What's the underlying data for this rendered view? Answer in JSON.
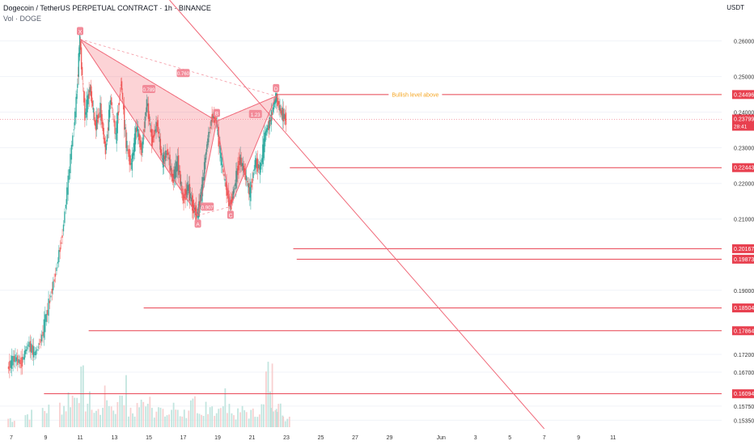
{
  "header": {
    "title": "Dogecoin / TetherUS PERPETUAL CONTRACT · 1h · BINANCE",
    "volume_label": "Vol · DOGE"
  },
  "axis": {
    "unit": "USDT"
  },
  "chart_data": {
    "type": "candlestick",
    "title": "Dogecoin / TetherUS PERPETUAL CONTRACT · 1h · BINANCE",
    "y_unit": "USDT",
    "ylim": [
      0.1511,
      0.2715
    ],
    "y_ticks": [
      0.26,
      0.25,
      0.24,
      0.23,
      0.22,
      0.21,
      0.19,
      0.172,
      0.167,
      0.1575,
      0.1535
    ],
    "x_ticks": [
      {
        "label": "7",
        "day": 7
      },
      {
        "label": "9",
        "day": 9
      },
      {
        "label": "11",
        "day": 11
      },
      {
        "label": "13",
        "day": 13
      },
      {
        "label": "15",
        "day": 15
      },
      {
        "label": "17",
        "day": 17
      },
      {
        "label": "19",
        "day": 19
      },
      {
        "label": "21",
        "day": 21
      },
      {
        "label": "23",
        "day": 23
      },
      {
        "label": "25",
        "day": 25
      },
      {
        "label": "27",
        "day": 27
      },
      {
        "label": "29",
        "day": 29
      },
      {
        "label": "Jun",
        "day": 32
      },
      {
        "label": "3",
        "day": 34
      },
      {
        "label": "5",
        "day": 36
      },
      {
        "label": "7",
        "day": 38
      },
      {
        "label": "9",
        "day": 40
      },
      {
        "label": "11",
        "day": 42
      }
    ],
    "price_path": [
      [
        6.8,
        0.168
      ],
      [
        7.2,
        0.171
      ],
      [
        7.6,
        0.1695
      ],
      [
        8.0,
        0.175
      ],
      [
        8.4,
        0.172
      ],
      [
        8.8,
        0.177
      ],
      [
        9.2,
        0.186
      ],
      [
        9.6,
        0.195
      ],
      [
        10.0,
        0.206
      ],
      [
        10.4,
        0.224
      ],
      [
        10.8,
        0.243
      ],
      [
        11.0,
        0.2605
      ],
      [
        11.3,
        0.239
      ],
      [
        11.6,
        0.247
      ],
      [
        11.9,
        0.236
      ],
      [
        12.2,
        0.241
      ],
      [
        12.5,
        0.229
      ],
      [
        12.8,
        0.244
      ],
      [
        13.1,
        0.233
      ],
      [
        13.4,
        0.249
      ],
      [
        13.7,
        0.231
      ],
      [
        14.0,
        0.225
      ],
      [
        14.3,
        0.236
      ],
      [
        14.6,
        0.229
      ],
      [
        14.9,
        0.243
      ],
      [
        15.2,
        0.232
      ],
      [
        15.5,
        0.237
      ],
      [
        15.8,
        0.226
      ],
      [
        16.1,
        0.229
      ],
      [
        16.4,
        0.221
      ],
      [
        16.7,
        0.226
      ],
      [
        17.0,
        0.2155
      ],
      [
        17.3,
        0.219
      ],
      [
        17.6,
        0.213
      ],
      [
        17.85,
        0.211
      ],
      [
        18.1,
        0.218
      ],
      [
        18.4,
        0.231
      ],
      [
        18.7,
        0.239
      ],
      [
        18.95,
        0.2375
      ],
      [
        19.2,
        0.227
      ],
      [
        19.5,
        0.219
      ],
      [
        19.75,
        0.2135
      ],
      [
        20.0,
        0.219
      ],
      [
        20.3,
        0.227
      ],
      [
        20.6,
        0.223
      ],
      [
        20.9,
        0.217
      ],
      [
        21.2,
        0.226
      ],
      [
        21.5,
        0.224
      ],
      [
        21.8,
        0.234
      ],
      [
        22.1,
        0.238
      ],
      [
        22.4,
        0.2445
      ],
      [
        22.7,
        0.24
      ],
      [
        23.0,
        0.238
      ]
    ],
    "volume_range": [
      0,
      100
    ],
    "volume": [
      [
        7,
        12
      ],
      [
        8,
        18
      ],
      [
        9,
        25
      ],
      [
        10,
        30
      ],
      [
        10.5,
        42
      ],
      [
        11,
        60
      ],
      [
        11.5,
        35
      ],
      [
        12,
        22
      ],
      [
        12.5,
        40
      ],
      [
        13,
        28
      ],
      [
        13.5,
        52
      ],
      [
        14,
        20
      ],
      [
        14.5,
        31
      ],
      [
        15,
        45
      ],
      [
        15.5,
        24
      ],
      [
        16,
        18
      ],
      [
        16.5,
        26
      ],
      [
        17,
        20
      ],
      [
        17.5,
        30
      ],
      [
        18,
        14
      ],
      [
        18.5,
        34
      ],
      [
        19,
        22
      ],
      [
        19.5,
        38
      ],
      [
        20,
        18
      ],
      [
        20.5,
        22
      ],
      [
        21,
        19
      ],
      [
        21.5,
        27
      ],
      [
        22,
        68
      ],
      [
        22.3,
        40
      ],
      [
        22.6,
        25
      ],
      [
        23,
        15
      ]
    ],
    "pattern": {
      "points": [
        {
          "label": "X",
          "day": 11.0,
          "price": 0.2605
        },
        {
          "label": "A",
          "day": 17.85,
          "price": 0.211
        },
        {
          "label": "B",
          "day": 18.95,
          "price": 0.2375
        },
        {
          "label": "C",
          "day": 19.75,
          "price": 0.2135
        },
        {
          "label": "D",
          "day": 22.4,
          "price": 0.2445
        }
      ],
      "ratios": [
        {
          "label": "0.789",
          "day": 15.0,
          "price": 0.2465
        },
        {
          "label": "0.760",
          "day": 17.0,
          "price": 0.251
        },
        {
          "label": "0.907",
          "day": 18.4,
          "price": 0.2135
        },
        {
          "label": "1.23",
          "day": 21.2,
          "price": 0.2395
        }
      ]
    },
    "trendline": [
      [
        16.2,
        0.2715
      ],
      [
        38.0,
        0.1511
      ]
    ],
    "levels": [
      {
        "price": 0.24496,
        "label": "0.24496",
        "start_day": 22.4
      },
      {
        "price": 0.22443,
        "label": "0.22443",
        "start_day": 23.2
      },
      {
        "price": 0.20167,
        "label": "0.20167",
        "start_day": 23.4
      },
      {
        "price": 0.19873,
        "label": "0.19873",
        "start_day": 23.6
      },
      {
        "price": 0.18504,
        "label": "0.18504",
        "start_day": 14.7
      },
      {
        "price": 0.17864,
        "label": "0.17864",
        "start_day": 11.5
      },
      {
        "price": 0.16094,
        "label": "0.16094",
        "start_day": 8.9
      }
    ],
    "current_price": {
      "price": 0.23799,
      "label": "0.23799",
      "countdown": "28:41"
    },
    "annotation": {
      "text": "Bullish level above",
      "day": 30.5,
      "price": 0.24496,
      "color": "#f5a623"
    }
  }
}
